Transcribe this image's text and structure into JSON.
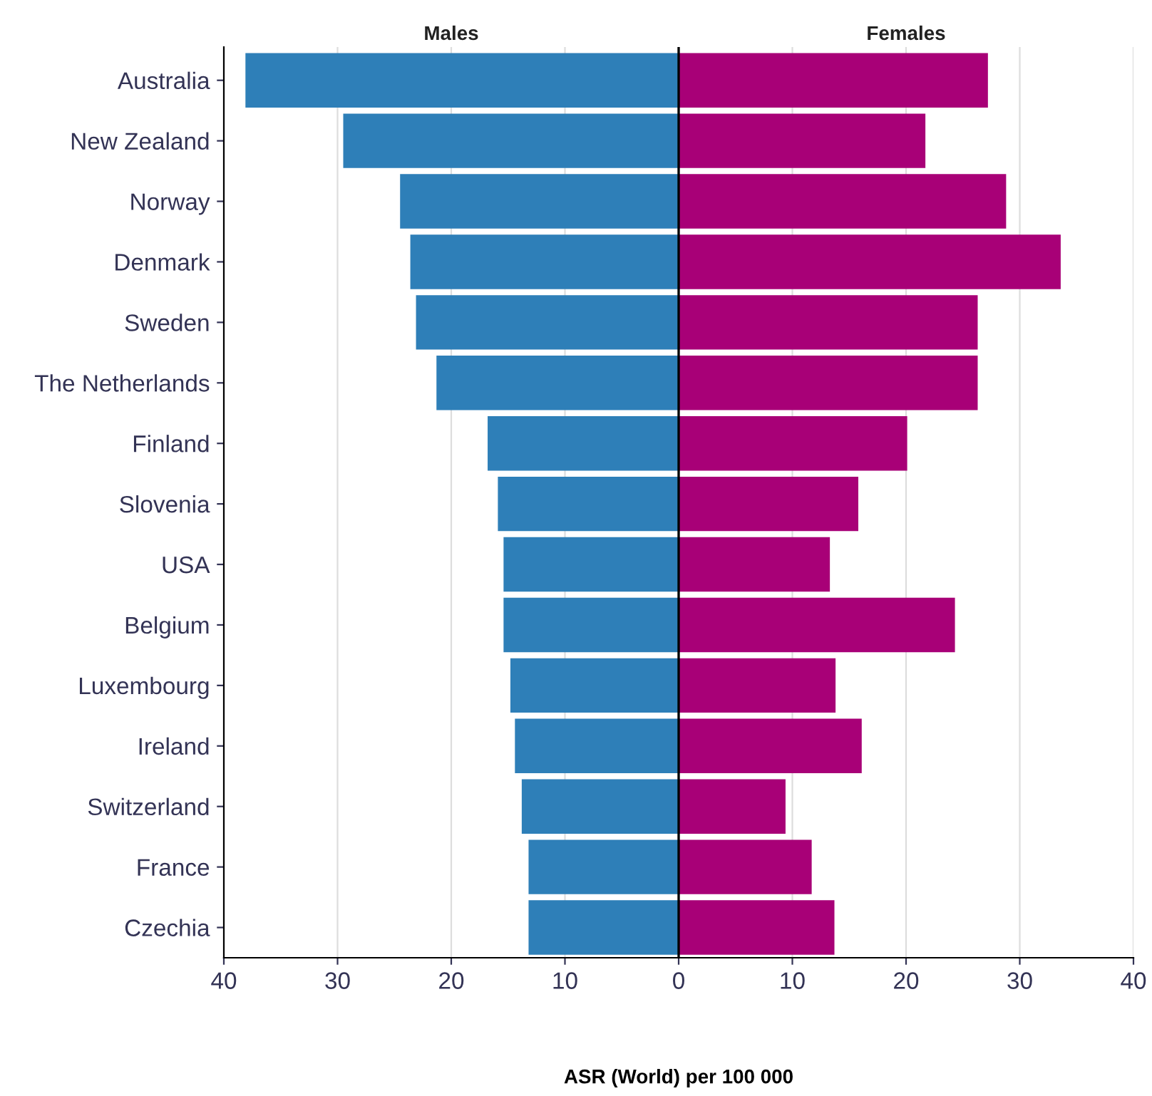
{
  "chart_data": {
    "type": "bar",
    "orientation": "horizontal",
    "stacked": true,
    "xlabel": "ASR (World) per 100 000",
    "categories": [
      "Australia",
      "New Zealand",
      "Norway",
      "Denmark",
      "Sweden",
      "The Netherlands",
      "Finland",
      "Slovenia",
      "USA",
      "Belgium",
      "Luxembourg",
      "Ireland",
      "Switzerland",
      "France",
      "Czechia"
    ],
    "series": [
      {
        "name": "Males",
        "color": "#2e7fb8",
        "values": [
          -38.1,
          -29.5,
          -24.5,
          -23.6,
          -23.1,
          -21.3,
          -16.8,
          -15.9,
          -15.4,
          -15.4,
          -14.8,
          -14.4,
          -13.8,
          -13.2,
          -13.2
        ]
      },
      {
        "name": "Females",
        "color": "#a80077",
        "values": [
          27.2,
          21.7,
          28.8,
          33.6,
          26.3,
          26.3,
          20.1,
          15.8,
          13.3,
          24.3,
          13.8,
          16.1,
          9.4,
          11.7,
          13.7
        ]
      }
    ],
    "xlim": [
      -40,
      40
    ],
    "xticks": [
      {
        "value": -40,
        "label": "40"
      },
      {
        "value": -30,
        "label": "30"
      },
      {
        "value": -20,
        "label": "20"
      },
      {
        "value": -10,
        "label": "10"
      },
      0,
      10,
      20,
      30,
      40
    ],
    "ref_lines": [
      {
        "axis": "x",
        "value": 0,
        "color": "#000000"
      }
    ],
    "grid": "x",
    "legend": false
  }
}
